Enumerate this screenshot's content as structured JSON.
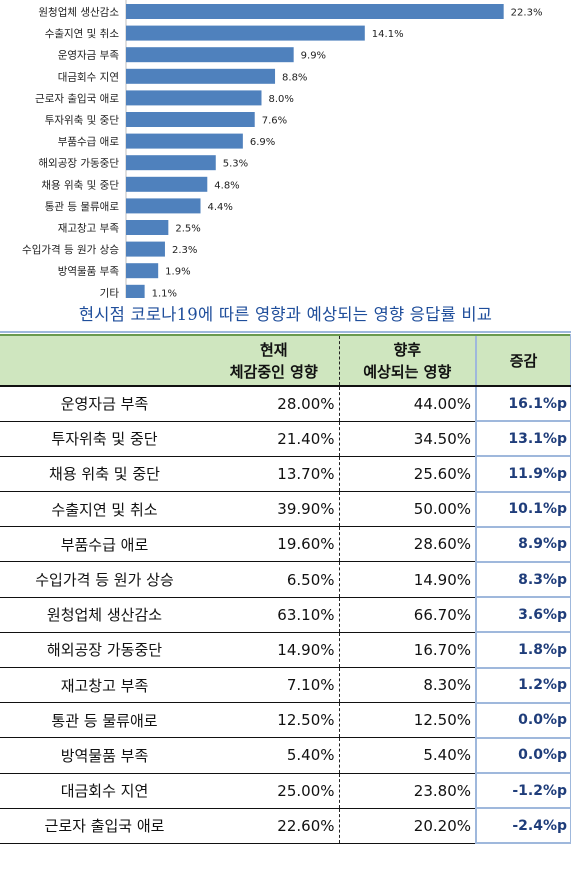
{
  "chart_data": {
    "type": "bar",
    "orientation": "horizontal",
    "categories": [
      "원청업체 생산감소",
      "수출지연 및 취소",
      "운영자금 부족",
      "대금회수 지연",
      "근로자 출입국 애로",
      "투자위축 및 중단",
      "부품수급 애로",
      "해외공장 가동중단",
      "채용 위축 및 중단",
      "통관 등 물류애로",
      "재고창고 부족",
      "수입가격 등 원가 상승",
      "방역물품 부족",
      "기타"
    ],
    "values": [
      22.3,
      14.1,
      9.9,
      8.8,
      8.0,
      7.6,
      6.9,
      5.3,
      4.8,
      4.4,
      2.5,
      2.3,
      1.9,
      1.1
    ],
    "value_labels": [
      "22.3%",
      "14.1%",
      "9.9%",
      "8.8%",
      "8.0%",
      "7.6%",
      "6.9%",
      "5.3%",
      "4.8%",
      "4.4%",
      "2.5%",
      "2.3%",
      "1.9%",
      "1.1%"
    ],
    "xlim": [
      0,
      23.5
    ],
    "bar_color": "#4f81bd",
    "grid": false,
    "legend": "none"
  },
  "heading": "현시점 코로나19에 따른 영향과 예상되는 영향 응답률 비교",
  "table": {
    "headers": [
      {
        "line1": "",
        "line2": ""
      },
      {
        "line1": "현재",
        "line2": "체감중인 영향"
      },
      {
        "line1": "향후",
        "line2": "예상되는 영향"
      },
      {
        "line1": "증감",
        "line2": ""
      }
    ],
    "rows": [
      {
        "item": "운영자금 부족",
        "current": "28.00%",
        "future": "44.00%",
        "change": "16.1%p"
      },
      {
        "item": "투자위축 및 중단",
        "current": "21.40%",
        "future": "34.50%",
        "change": "13.1%p"
      },
      {
        "item": "채용 위축 및 중단",
        "current": "13.70%",
        "future": "25.60%",
        "change": "11.9%p"
      },
      {
        "item": "수출지연 및 취소",
        "current": "39.90%",
        "future": "50.00%",
        "change": "10.1%p"
      },
      {
        "item": "부품수급 애로",
        "current": "19.60%",
        "future": "28.60%",
        "change": "8.9%p"
      },
      {
        "item": "수입가격 등 원가 상승",
        "current": "6.50%",
        "future": "14.90%",
        "change": "8.3%p"
      },
      {
        "item": "원청업체 생산감소",
        "current": "63.10%",
        "future": "66.70%",
        "change": "3.6%p"
      },
      {
        "item": "해외공장 가동중단",
        "current": "14.90%",
        "future": "16.70%",
        "change": "1.8%p"
      },
      {
        "item": "재고창고 부족",
        "current": "7.10%",
        "future": "8.30%",
        "change": "1.2%p"
      },
      {
        "item": "통관 등 물류애로",
        "current": "12.50%",
        "future": "12.50%",
        "change": "0.0%p"
      },
      {
        "item": "방역물품 부족",
        "current": "5.40%",
        "future": "5.40%",
        "change": "0.0%p"
      },
      {
        "item": "대금회수 지연",
        "current": "25.00%",
        "future": "23.80%",
        "change": "-1.2%p"
      },
      {
        "item": "근로자 출입국 애로",
        "current": "22.60%",
        "future": "20.20%",
        "change": "-2.4%p"
      }
    ]
  }
}
